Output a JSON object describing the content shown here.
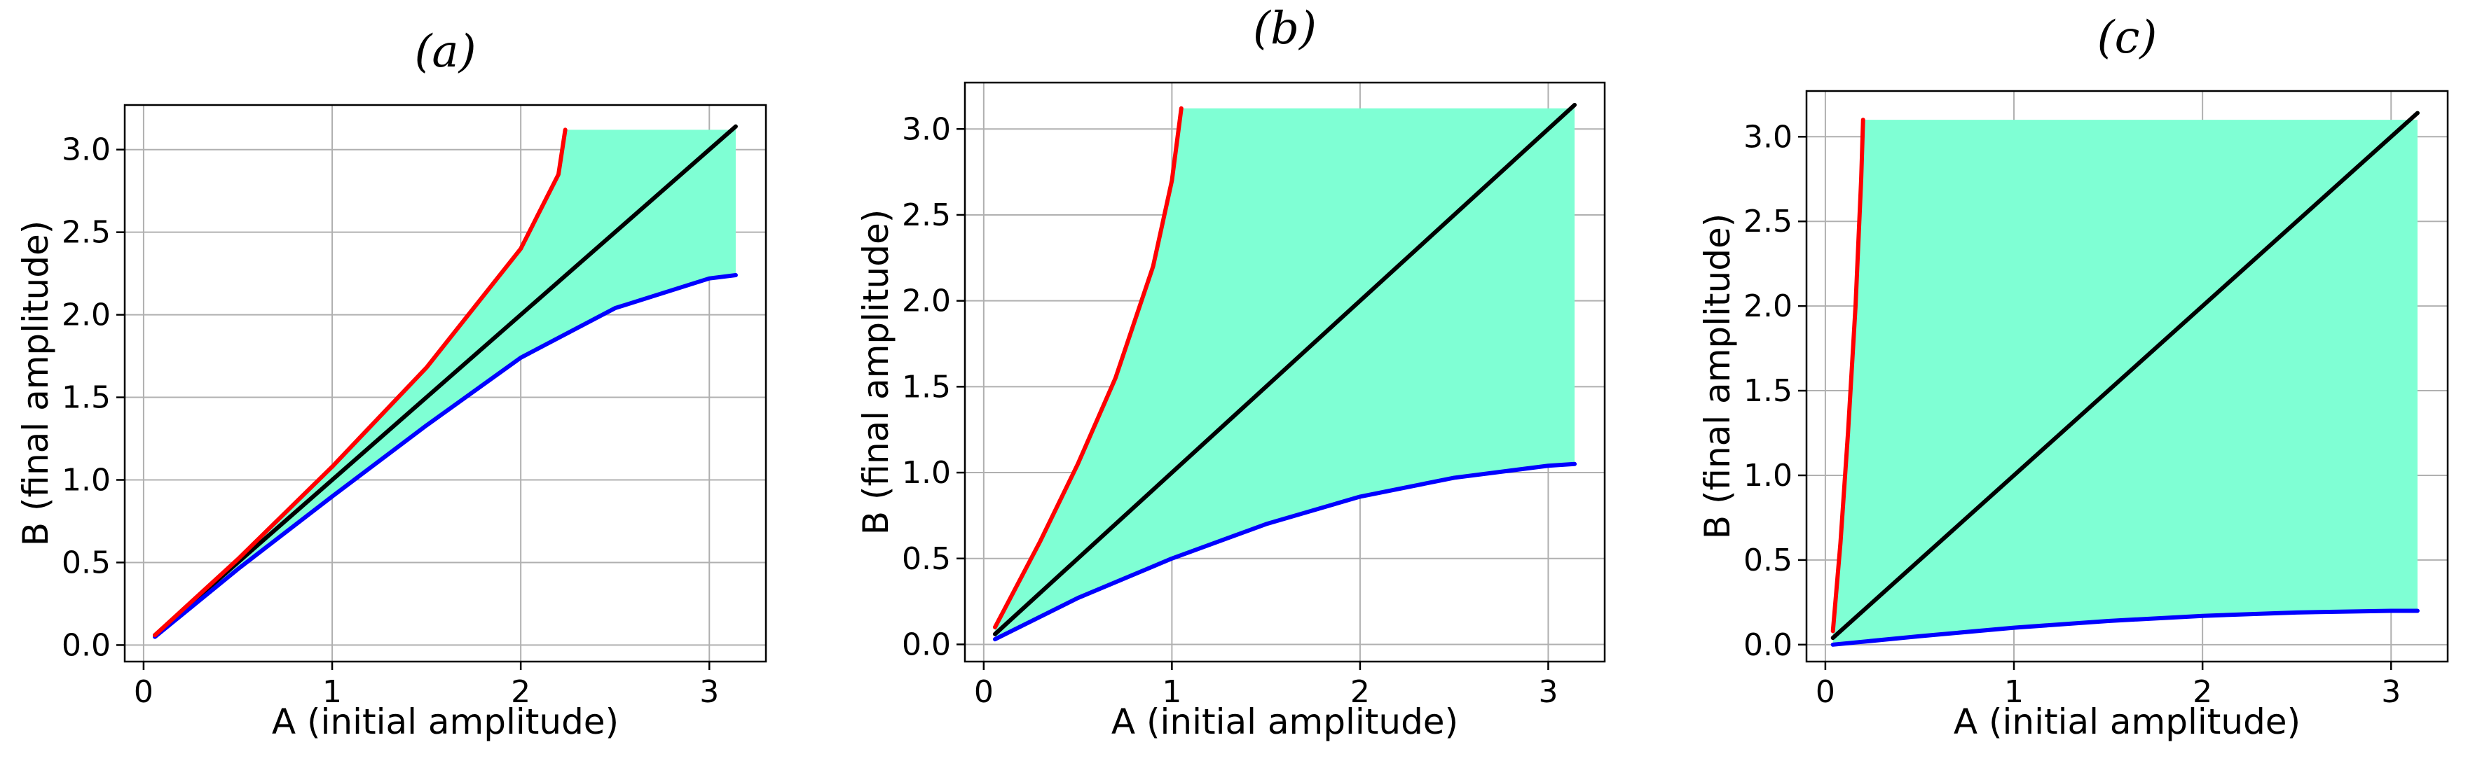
{
  "colors": {
    "region": "#7fffd4",
    "upper": "#ff0000",
    "lower": "#0000ff",
    "diagonal": "#000000",
    "grid": "#b0b0b0"
  },
  "chart_data": [
    {
      "type": "area",
      "title": "(a)",
      "xlabel": "A (initial amplitude)",
      "ylabel": "B (final amplitude)",
      "xlim": [
        -0.1,
        3.3
      ],
      "ylim": [
        -0.1,
        3.27
      ],
      "xticks": [
        0,
        1,
        2,
        3
      ],
      "yticks": [
        0.0,
        0.5,
        1.0,
        1.5,
        2.0,
        2.5,
        3.0
      ],
      "grid": true,
      "series": [
        {
          "role": "upper",
          "x": [
            0.06,
            0.5,
            1.0,
            1.5,
            2.0,
            2.2,
            2.236
          ],
          "y": [
            0.06,
            0.52,
            1.08,
            1.68,
            2.4,
            2.85,
            3.12
          ]
        },
        {
          "role": "lower",
          "x": [
            0.06,
            0.5,
            1.0,
            1.5,
            2.0,
            2.5,
            3.0,
            3.14
          ],
          "y": [
            0.05,
            0.46,
            0.9,
            1.33,
            1.74,
            2.04,
            2.22,
            2.24
          ]
        },
        {
          "role": "diagonal",
          "x": [
            0.06,
            3.14
          ],
          "y": [
            0.06,
            3.14
          ]
        },
        {
          "role": "region",
          "x": [
            2.236,
            3.14
          ],
          "y_top": 3.12,
          "y_bottom": 2.24
        }
      ]
    },
    {
      "type": "area",
      "title": "(b)",
      "xlabel": "A (initial amplitude)",
      "ylabel": "B (final amplitude)",
      "xlim": [
        -0.1,
        3.3
      ],
      "ylim": [
        -0.1,
        3.27
      ],
      "xticks": [
        0,
        1,
        2,
        3
      ],
      "yticks": [
        0.0,
        0.5,
        1.0,
        1.5,
        2.0,
        2.5,
        3.0
      ],
      "grid": true,
      "series": [
        {
          "role": "upper",
          "x": [
            0.06,
            0.3,
            0.5,
            0.7,
            0.9,
            1.0,
            1.05
          ],
          "y": [
            0.1,
            0.6,
            1.05,
            1.55,
            2.2,
            2.7,
            3.12
          ]
        },
        {
          "role": "lower",
          "x": [
            0.06,
            0.5,
            1.0,
            1.5,
            2.0,
            2.5,
            3.0,
            3.14
          ],
          "y": [
            0.03,
            0.27,
            0.5,
            0.7,
            0.86,
            0.97,
            1.04,
            1.05
          ]
        },
        {
          "role": "diagonal",
          "x": [
            0.06,
            3.14
          ],
          "y": [
            0.06,
            3.14
          ]
        },
        {
          "role": "region",
          "x": [
            1.05,
            3.14
          ],
          "y_top": 3.12,
          "y_bottom": 1.05
        }
      ]
    },
    {
      "type": "area",
      "title": "(c)",
      "xlabel": "A (initial amplitude)",
      "ylabel": "B (final amplitude)",
      "xlim": [
        -0.1,
        3.3
      ],
      "ylim": [
        -0.1,
        3.27
      ],
      "xticks": [
        0,
        1,
        2,
        3
      ],
      "yticks": [
        0.0,
        0.5,
        1.0,
        1.5,
        2.0,
        2.5,
        3.0
      ],
      "grid": true,
      "series": [
        {
          "role": "upper",
          "x": [
            0.04,
            0.08,
            0.12,
            0.16,
            0.19,
            0.2
          ],
          "y": [
            0.08,
            0.6,
            1.25,
            2.0,
            2.75,
            3.1
          ]
        },
        {
          "role": "lower",
          "x": [
            0.04,
            0.5,
            1.0,
            1.5,
            2.0,
            2.5,
            3.0,
            3.14
          ],
          "y": [
            0.0,
            0.05,
            0.1,
            0.14,
            0.17,
            0.19,
            0.2,
            0.2
          ]
        },
        {
          "role": "diagonal",
          "x": [
            0.04,
            3.14
          ],
          "y": [
            0.04,
            3.14
          ]
        },
        {
          "role": "region",
          "x": [
            0.2,
            3.14
          ],
          "y_top": 3.1,
          "y_bottom": 0.2
        }
      ]
    }
  ]
}
